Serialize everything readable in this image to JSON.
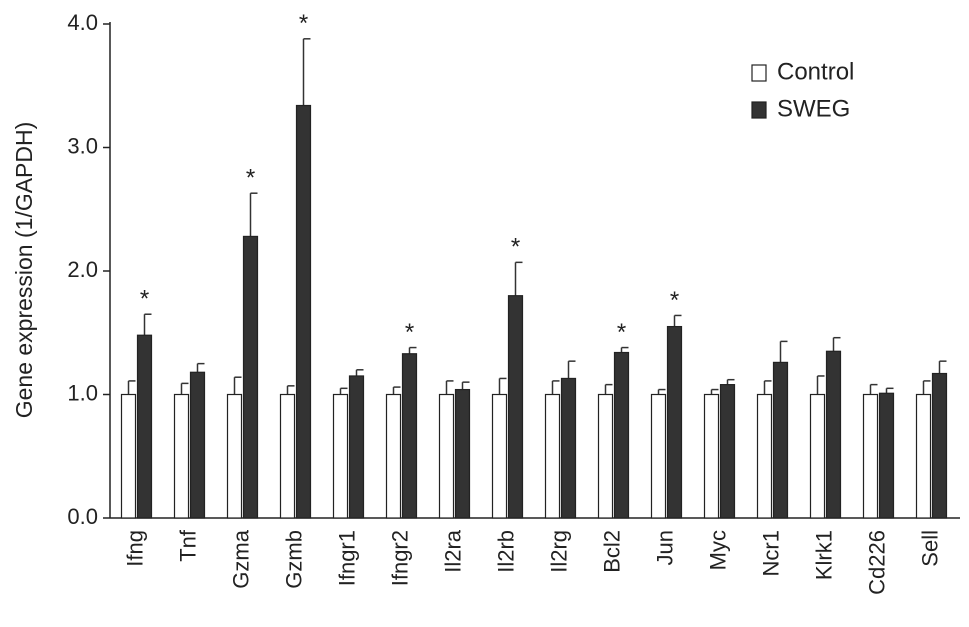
{
  "chart_data": {
    "type": "bar",
    "ylabel": "Gene expression (1/GAPDH)",
    "categories": [
      "Ifng",
      "Tnf",
      "Gzma",
      "Gzmb",
      "Ifngr1",
      "Ifngr2",
      "Il2ra",
      "Il2rb",
      "Il2rg",
      "Bcl2",
      "Jun",
      "Myc",
      "Ncr1",
      "Klrk1",
      "Cd226",
      "Sell"
    ],
    "series": [
      {
        "name": "Control",
        "color": "#ffffff",
        "values": [
          1.0,
          1.0,
          1.0,
          1.0,
          1.0,
          1.0,
          1.0,
          1.0,
          1.0,
          1.0,
          1.0,
          1.0,
          1.0,
          1.0,
          1.0,
          1.0
        ],
        "errors": [
          0.11,
          0.09,
          0.14,
          0.07,
          0.05,
          0.06,
          0.11,
          0.13,
          0.11,
          0.08,
          0.04,
          0.04,
          0.11,
          0.15,
          0.08,
          0.11
        ]
      },
      {
        "name": "SWEG",
        "color": "#333333",
        "values": [
          1.48,
          1.18,
          2.28,
          3.34,
          1.15,
          1.33,
          1.04,
          1.8,
          1.13,
          1.34,
          1.55,
          1.08,
          1.26,
          1.35,
          1.01,
          1.17
        ],
        "errors": [
          0.17,
          0.07,
          0.35,
          0.54,
          0.05,
          0.05,
          0.06,
          0.27,
          0.14,
          0.04,
          0.09,
          0.04,
          0.17,
          0.11,
          0.04,
          0.1
        ],
        "markers": [
          "*",
          null,
          "*",
          "*",
          null,
          "*",
          null,
          "*",
          null,
          "*",
          "*",
          null,
          null,
          null,
          null,
          null
        ]
      }
    ],
    "ylim": [
      0,
      4
    ],
    "yticks": [
      {
        "value": 0,
        "label": "0.0"
      },
      {
        "value": 1,
        "label": "1.0"
      },
      {
        "value": 2,
        "label": "2.0"
      },
      {
        "value": 3,
        "label": "3.0"
      },
      {
        "value": 4,
        "label": "4.0"
      }
    ],
    "legend": "upper right"
  }
}
